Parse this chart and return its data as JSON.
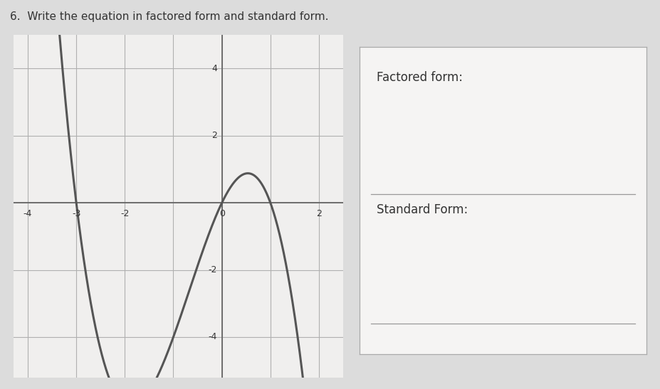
{
  "title": "6.  Write the equation in factored form and standard form.",
  "graph_xlim": [
    -4.3,
    2.5
  ],
  "graph_ylim": [
    -5.2,
    5.0
  ],
  "xticks": [
    -4,
    -3,
    -2,
    -1,
    0,
    1,
    2
  ],
  "yticks": [
    -4,
    -2,
    0,
    2,
    4
  ],
  "xtick_labels_show": {
    "-4": "-4",
    "-3": "-3",
    "-2": "-2",
    "0": "0",
    "2": "2"
  },
  "ytick_labels_show": {
    "-4": "-4",
    "-2": "-2",
    "2": "2",
    "4": "4"
  },
  "curve_color": "#555555",
  "curve_linewidth": 2.2,
  "roots": [
    -3,
    0,
    1
  ],
  "leading_coeff": -1,
  "page_bg": "#dcdcdc",
  "graph_bg": "#f0efee",
  "factored_form_label": "Factored form:",
  "standard_form_label": "Standard Form:",
  "box_bg": "#f5f4f3",
  "line_color": "#999999",
  "grid_color": "#b0b0b0",
  "axis_color": "#666666",
  "text_color": "#333333"
}
